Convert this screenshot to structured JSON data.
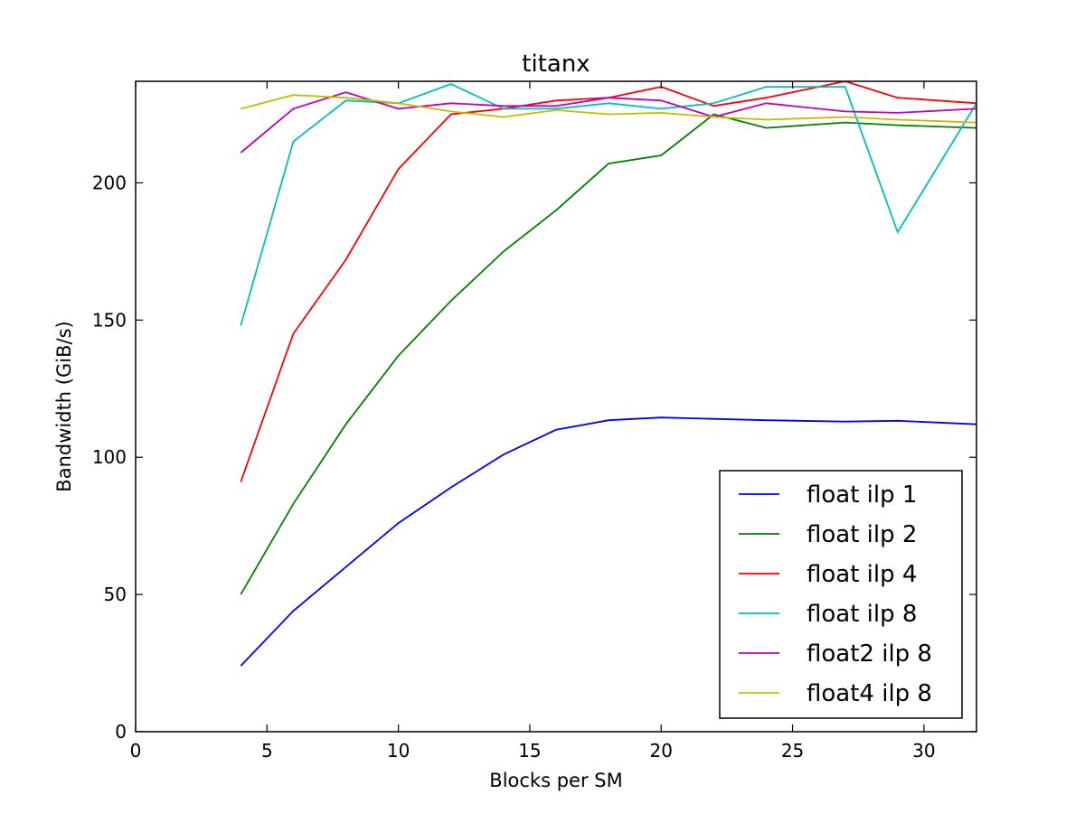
{
  "chart_data": {
    "type": "line",
    "title": "titanx",
    "xlabel": "Blocks per SM",
    "ylabel": "Bandwidth (GiB/s)",
    "xlim": [
      0,
      32
    ],
    "ylim": [
      0,
      237
    ],
    "xticks": [
      0,
      5,
      10,
      15,
      20,
      25,
      30
    ],
    "yticks": [
      0,
      50,
      100,
      150,
      200
    ],
    "grid": false,
    "legend_position": "lower-right",
    "x": [
      4,
      6,
      8,
      10,
      12,
      14,
      16,
      18,
      20,
      22,
      24,
      27,
      29,
      32
    ],
    "series": [
      {
        "name": "float ilp 1",
        "color": "#0000ff",
        "values": [
          24,
          44,
          60,
          76,
          89,
          101,
          110,
          113.5,
          114.5,
          114,
          113.5,
          113,
          113.3,
          112
        ]
      },
      {
        "name": "float ilp 2",
        "color": "#008000",
        "values": [
          50,
          83,
          112,
          137,
          157,
          175,
          190,
          207,
          210,
          225,
          220,
          222,
          221,
          220
        ]
      },
      {
        "name": "float ilp 4",
        "color": "#ff0000",
        "values": [
          91,
          145,
          172,
          205,
          225,
          227,
          230,
          231,
          235,
          228,
          231,
          237,
          231,
          229
        ]
      },
      {
        "name": "float ilp 8",
        "color": "#00bfbf",
        "values": [
          148,
          215,
          230,
          229,
          236,
          227,
          227,
          229,
          227,
          229,
          235,
          235,
          182,
          229
        ]
      },
      {
        "name": "float2 ilp 8",
        "color": "#bf00bf",
        "values": [
          211,
          227,
          233,
          227,
          229,
          228,
          228,
          231,
          230,
          224,
          229,
          226,
          225.5,
          227
        ]
      },
      {
        "name": "float4 ilp 8",
        "color": "#bfbf00",
        "values": [
          227,
          232,
          231,
          229,
          226,
          224,
          226.5,
          225,
          225.5,
          224,
          223,
          224,
          223,
          222
        ]
      }
    ]
  }
}
